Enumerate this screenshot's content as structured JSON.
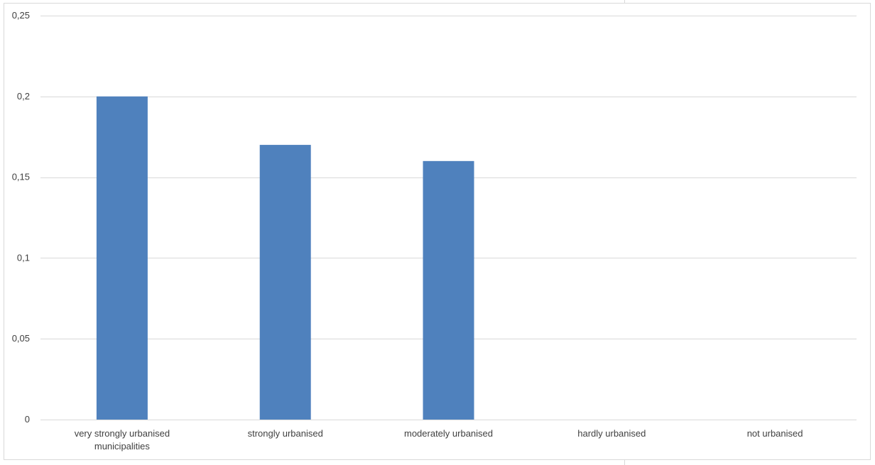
{
  "chart_data": {
    "type": "bar",
    "categories": [
      [
        "very strongly urbanised",
        "municipalities"
      ],
      [
        "strongly urbanised"
      ],
      [
        "moderately urbanised"
      ],
      [
        "hardly urbanised"
      ],
      [
        "not urbanised"
      ]
    ],
    "values": [
      0.2,
      0.17,
      0.16,
      0,
      0
    ],
    "ylim": [
      0,
      0.25
    ],
    "yticks": [
      0,
      0.05,
      0.1,
      0.15,
      0.2,
      0.25
    ],
    "ytick_labels": [
      "0",
      "0,05",
      "0,1",
      "0,15",
      "0,2",
      "0,25"
    ],
    "title": "",
    "xlabel": "",
    "ylabel": "",
    "grid": true,
    "legend": "none",
    "colors": {
      "bar": "#4f81bd",
      "grid": "#d9d9d9",
      "axis": "#d9d9d9",
      "text": "#404040"
    }
  }
}
